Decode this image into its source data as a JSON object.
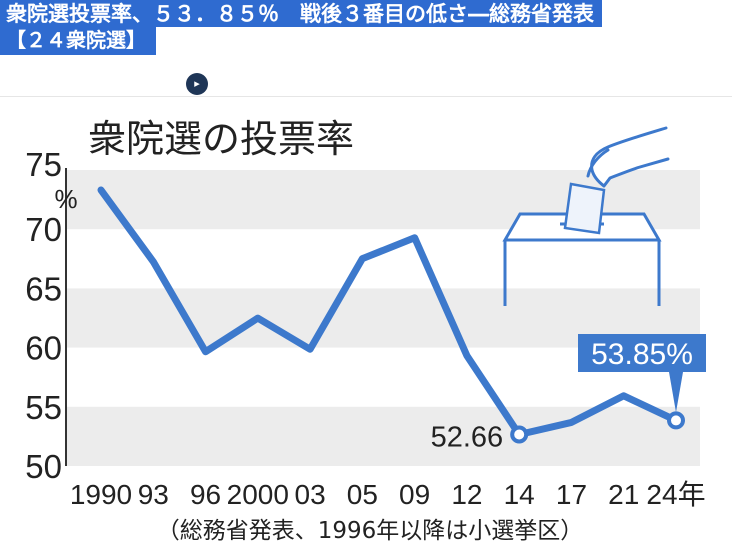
{
  "headline": {
    "line1": "衆院選投票率、５３．８５％　戦後３番目の低さ―総務省発表",
    "line2": "【２４衆院選】"
  },
  "icons": {
    "site": "play-badge-icon",
    "ballot": "ballot-box-hand-icon"
  },
  "colors": {
    "line": "#3d79cc",
    "band": "#ececec",
    "callout": "#3d79cc",
    "headline_bg": "#2f6bd0"
  },
  "chart_data": {
    "type": "line",
    "title": "衆院選の投票率",
    "ylabel": "%",
    "source": "（総務省発表、1996年以降は小選挙区）",
    "categories": [
      "1990",
      "93",
      "96",
      "2000",
      "03",
      "05",
      "09",
      "12",
      "14",
      "17",
      "21",
      "24年"
    ],
    "values": [
      73.31,
      67.26,
      59.65,
      62.49,
      59.86,
      67.51,
      69.28,
      59.32,
      52.66,
      53.68,
      55.93,
      53.85
    ],
    "yticks": [
      "50",
      "55",
      "60",
      "65",
      "70",
      "75"
    ],
    "ylim": [
      50,
      75
    ],
    "grid": "alternating horizontal bands",
    "annotations": [
      {
        "index": 8,
        "text": "52.66"
      },
      {
        "index": 11,
        "text": "53.85%",
        "style": "callout"
      }
    ]
  }
}
